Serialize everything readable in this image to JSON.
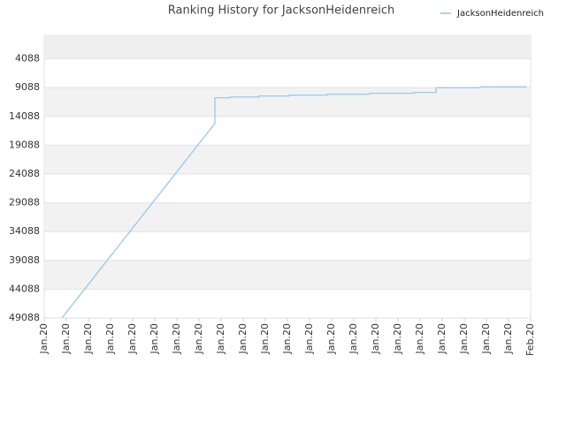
{
  "chart_data": {
    "type": "line",
    "title": "Ranking History for JacksonHeidenreich",
    "xlim": [
      0,
      22
    ],
    "xticks": [
      {
        "value": 0,
        "label": "Jan.20"
      },
      {
        "value": 1,
        "label": "Jan.20"
      },
      {
        "value": 2,
        "label": "Jan.20"
      },
      {
        "value": 3,
        "label": "Jan.20"
      },
      {
        "value": 4,
        "label": "Jan.20"
      },
      {
        "value": 5,
        "label": "Jan.20"
      },
      {
        "value": 6,
        "label": "Jan.20"
      },
      {
        "value": 7,
        "label": "Jan.20"
      },
      {
        "value": 8,
        "label": "Jan.20"
      },
      {
        "value": 9,
        "label": "Jan.20"
      },
      {
        "value": 10,
        "label": "Jan.20"
      },
      {
        "value": 11,
        "label": "Jan.20"
      },
      {
        "value": 12,
        "label": "Jan.20"
      },
      {
        "value": 13,
        "label": "Jan.20"
      },
      {
        "value": 14,
        "label": "Jan.20"
      },
      {
        "value": 15,
        "label": "Jan.20"
      },
      {
        "value": 16,
        "label": "Jan.20"
      },
      {
        "value": 17,
        "label": "Jan.20"
      },
      {
        "value": 18,
        "label": "Jan.20"
      },
      {
        "value": 19,
        "label": "Jan.20"
      },
      {
        "value": 20,
        "label": "Jan.20"
      },
      {
        "value": 21,
        "label": "Jan.20"
      },
      {
        "value": 22,
        "label": "Feb.20"
      }
    ],
    "ylim": [
      49088,
      0
    ],
    "yticks": [
      4088,
      9088,
      14088,
      19088,
      24088,
      29088,
      34088,
      39088,
      44088,
      49088
    ],
    "grid": true,
    "legend": "top-right",
    "series": [
      {
        "name": "JacksonHeidenreich",
        "color": "#90c4f0",
        "x": [
          0.8,
          7.72,
          7.72,
          8.4,
          8.4,
          9.72,
          9.72,
          11.08,
          11.08,
          12.8,
          12.8,
          14.72,
          14.72,
          16.72,
          16.72,
          17.72,
          17.72,
          19.72,
          19.72,
          21.8,
          21.8
        ],
        "values": [
          49088,
          15300,
          10850,
          10850,
          10700,
          10700,
          10540,
          10540,
          10390,
          10390,
          10230,
          10230,
          10080,
          10080,
          9930,
          9930,
          9090,
          9090,
          8930,
          8930,
          8780
        ]
      }
    ]
  }
}
